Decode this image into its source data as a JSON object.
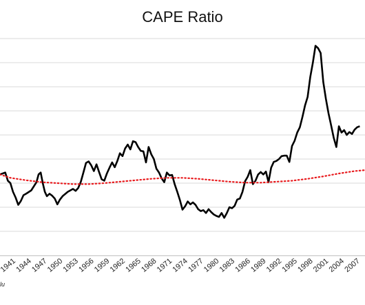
{
  "chart_data": {
    "type": "line",
    "title": "CAPE Ratio",
    "xlabel": "",
    "ylabel": "",
    "x_tick_labels": [
      "1941",
      "1944",
      "1947",
      "1950",
      "1953",
      "1956",
      "1959",
      "1962",
      "1965",
      "1968",
      "1971",
      "1974",
      "1977",
      "1980",
      "1983",
      "1986",
      "1989",
      "1992",
      "1995",
      "1998",
      "2001",
      "2004",
      "2007"
    ],
    "xlim": [
      1939.0,
      2009.0
    ],
    "ylim": [
      0,
      45
    ],
    "gridlines": [
      5,
      10,
      15,
      20,
      25,
      30,
      35,
      40,
      45
    ],
    "grid": true,
    "legend": "none",
    "credit_text": "lu",
    "colors": {
      "cape": "#000000",
      "average": "#e8191c",
      "grid": "#d9d9d9"
    },
    "series": [
      {
        "style": "solid",
        "x": [
          1939.0,
          1940.0,
          1940.5,
          1941.0,
          1941.5,
          1942.0,
          1942.5,
          1943.0,
          1943.5,
          1944.0,
          1945.0,
          1946.0,
          1946.4,
          1946.8,
          1947.2,
          1947.6,
          1948.0,
          1948.5,
          1949.0,
          1949.5,
          1950.0,
          1950.5,
          1951.0,
          1952.0,
          1953.0,
          1953.5,
          1954.0,
          1954.5,
          1955.0,
          1955.5,
          1956.0,
          1956.5,
          1957.0,
          1957.5,
          1958.0,
          1958.5,
          1959.0,
          1959.5,
          1960.0,
          1960.5,
          1961.0,
          1961.5,
          1962.0,
          1962.5,
          1963.0,
          1963.5,
          1964.0,
          1964.5,
          1965.0,
          1965.5,
          1966.0,
          1966.5,
          1967.0,
          1967.5,
          1968.0,
          1968.5,
          1969.0,
          1969.5,
          1970.0,
          1970.5,
          1971.0,
          1971.5,
          1972.0,
          1972.5,
          1973.0,
          1973.5,
          1974.0,
          1974.5,
          1975.0,
          1975.5,
          1976.0,
          1976.5,
          1977.0,
          1977.5,
          1978.0,
          1978.5,
          1979.0,
          1979.5,
          1980.0,
          1980.5,
          1981.0,
          1981.5,
          1982.0,
          1982.5,
          1983.0,
          1983.5,
          1984.0,
          1984.5,
          1985.0,
          1985.5,
          1986.0,
          1986.5,
          1987.0,
          1987.5,
          1988.0,
          1988.5,
          1989.0,
          1989.5,
          1990.0,
          1990.5,
          1991.0,
          1991.5,
          1992.0,
          1992.5,
          1993.0,
          1993.5,
          1994.0,
          1994.5,
          1995.0,
          1995.5,
          1996.0,
          1996.5,
          1997.0,
          1997.5,
          1998.0,
          1998.5,
          1999.0,
          1999.5,
          2000.0,
          2000.5,
          2001.0,
          2001.5,
          2002.0,
          2002.5,
          2003.0,
          2003.5,
          2004.0,
          2004.5,
          2005.0,
          2005.5,
          2006.0,
          2006.5,
          2007.0,
          2007.5,
          2008.0
        ],
        "y": [
          16.8,
          17.2,
          15.5,
          15.0,
          13.2,
          12.0,
          10.5,
          11.3,
          12.5,
          12.8,
          13.5,
          15.2,
          16.8,
          17.2,
          15.0,
          13.2,
          12.3,
          12.8,
          12.4,
          11.8,
          10.6,
          11.6,
          12.3,
          13.2,
          13.8,
          13.4,
          14.0,
          15.3,
          17.2,
          19.2,
          19.5,
          18.7,
          17.5,
          18.9,
          17.3,
          15.8,
          15.5,
          17.0,
          18.2,
          19.3,
          18.3,
          19.6,
          21.2,
          20.6,
          22.2,
          23.0,
          22.0,
          23.7,
          23.5,
          22.5,
          21.7,
          21.6,
          19.3,
          22.5,
          21.0,
          20.0,
          18.0,
          17.2,
          16.0,
          15.2,
          17.2,
          16.6,
          16.7,
          14.8,
          13.2,
          11.5,
          9.5,
          10.2,
          11.2,
          10.6,
          11.0,
          10.5,
          9.6,
          9.2,
          9.4,
          8.8,
          9.6,
          9.0,
          8.5,
          8.2,
          8.0,
          8.8,
          7.8,
          8.8,
          10.0,
          9.8,
          10.3,
          11.6,
          11.8,
          13.2,
          15.4,
          16.3,
          17.7,
          14.8,
          15.5,
          16.8,
          17.3,
          16.8,
          17.4,
          15.2,
          18.2,
          19.4,
          19.6,
          20.0,
          20.6,
          20.7,
          20.7,
          19.4,
          22.7,
          23.8,
          25.5,
          26.6,
          28.7,
          31.1,
          32.9,
          37.0,
          40.0,
          43.5,
          43.0,
          42.0,
          36.0,
          32.5,
          29.5,
          27.0,
          24.4,
          22.5,
          26.8,
          25.5,
          26.0,
          25.0,
          25.6,
          25.2,
          26.1,
          26.6,
          26.8
        ]
      },
      {
        "style": "dotted",
        "x": [
          1939.0,
          1941.0,
          1944.0,
          1947.0,
          1950.0,
          1953.0,
          1956.0,
          1959.0,
          1962.0,
          1965.0,
          1968.0,
          1971.0,
          1974.0,
          1977.0,
          1980.0,
          1983.0,
          1986.0,
          1989.0,
          1992.0,
          1995.0,
          1998.0,
          2001.0,
          2004.0,
          2007.0,
          2009.0
        ],
        "y": [
          16.8,
          16.1,
          15.6,
          15.2,
          15.0,
          14.8,
          14.8,
          15.0,
          15.3,
          15.6,
          15.9,
          16.1,
          16.1,
          15.9,
          15.6,
          15.3,
          15.1,
          15.1,
          15.3,
          15.5,
          15.9,
          16.4,
          17.0,
          17.5,
          17.7
        ]
      }
    ]
  }
}
